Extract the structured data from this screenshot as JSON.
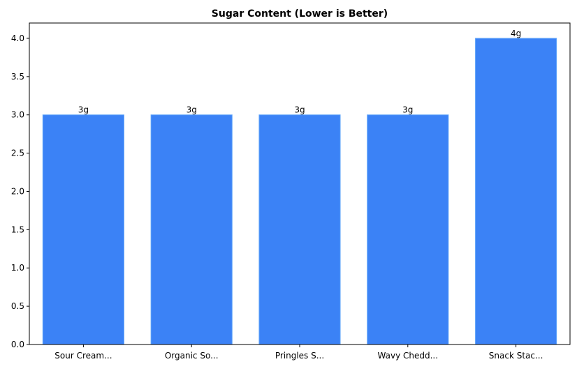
{
  "chart_data": {
    "type": "bar",
    "title": "Sugar Content (Lower is Better)",
    "xlabel": "",
    "ylabel": "",
    "categories": [
      "Sour Cream...",
      "Organic So...",
      "Pringles S...",
      "Wavy Chedd...",
      "Snack Stac..."
    ],
    "values": [
      3,
      3,
      3,
      3,
      4
    ],
    "data_labels": [
      "3g",
      "3g",
      "3g",
      "3g",
      "4g"
    ],
    "ylim": [
      0,
      4.2
    ],
    "yticks": [
      "0.0",
      "0.5",
      "1.0",
      "1.5",
      "2.0",
      "2.5",
      "3.0",
      "3.5",
      "4.0"
    ],
    "grid": false,
    "bar_color": "#3b82f6"
  }
}
